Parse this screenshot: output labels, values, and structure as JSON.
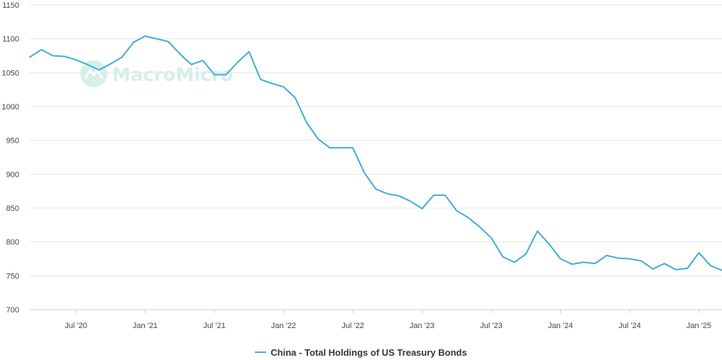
{
  "chart_data": {
    "type": "line",
    "title": "",
    "xlabel": "",
    "ylabel": "",
    "ylim": [
      700,
      1150
    ],
    "yticks": [
      700,
      750,
      800,
      850,
      900,
      950,
      1000,
      1050,
      1100,
      1150
    ],
    "xticks": [
      {
        "label": "Jul '20",
        "date": "2020-07"
      },
      {
        "label": "Jan '21",
        "date": "2021-01"
      },
      {
        "label": "Jul '21",
        "date": "2021-07"
      },
      {
        "label": "Jan '22",
        "date": "2022-01"
      },
      {
        "label": "Jul '22",
        "date": "2022-07"
      },
      {
        "label": "Jan '23",
        "date": "2023-01"
      },
      {
        "label": "Jul '23",
        "date": "2023-07"
      },
      {
        "label": "Jan '24",
        "date": "2024-01"
      },
      {
        "label": "Jul '24",
        "date": "2024-07"
      },
      {
        "label": "Jan '25",
        "date": "2025-01"
      }
    ],
    "x": [
      "2020-03",
      "2020-04",
      "2020-05",
      "2020-06",
      "2020-07",
      "2020-08",
      "2020-09",
      "2020-10",
      "2020-11",
      "2020-12",
      "2021-01",
      "2021-02",
      "2021-03",
      "2021-04",
      "2021-05",
      "2021-06",
      "2021-07",
      "2021-08",
      "2021-09",
      "2021-10",
      "2021-11",
      "2021-12",
      "2022-01",
      "2022-02",
      "2022-03",
      "2022-04",
      "2022-05",
      "2022-06",
      "2022-07",
      "2022-08",
      "2022-09",
      "2022-10",
      "2022-11",
      "2022-12",
      "2023-01",
      "2023-02",
      "2023-03",
      "2023-04",
      "2023-05",
      "2023-06",
      "2023-07",
      "2023-08",
      "2023-09",
      "2023-10",
      "2023-11",
      "2023-12",
      "2024-01",
      "2024-02",
      "2024-03",
      "2024-04",
      "2024-05",
      "2024-06",
      "2024-07",
      "2024-08",
      "2024-09",
      "2024-10",
      "2024-11",
      "2024-12",
      "2025-01",
      "2025-02",
      "2025-03",
      "2025-04"
    ],
    "series": [
      {
        "name": "China - Total Holdings of US Treasury Bonds",
        "color": "#3eadd6",
        "values": [
          1073,
          1084,
          1075,
          1074,
          1069,
          1062,
          1054,
          1063,
          1073,
          1095,
          1104,
          1100,
          1096,
          1078,
          1062,
          1068,
          1047,
          1047,
          1065,
          1081,
          1040,
          1034,
          1029,
          1013,
          976,
          952,
          939,
          939,
          939,
          902,
          878,
          871,
          868,
          860,
          849,
          869,
          869,
          846,
          836,
          822,
          806,
          778,
          770,
          782,
          816,
          797,
          775,
          767,
          770,
          768,
          780,
          776,
          775,
          772,
          760,
          768,
          759,
          761,
          784,
          765,
          758,
          757
        ]
      }
    ]
  },
  "watermark": {
    "text": "MacroMicro",
    "color": "#d6efe9"
  },
  "legend": {
    "placement": "bottom-center"
  }
}
